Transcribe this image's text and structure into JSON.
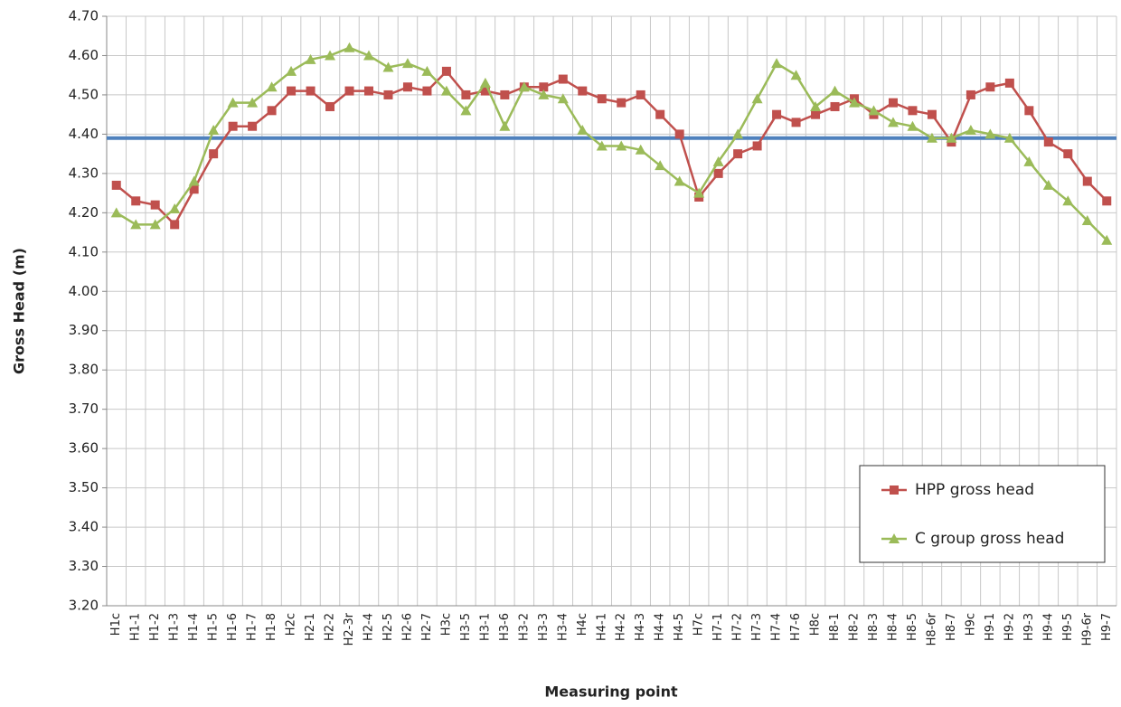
{
  "chart_data": {
    "type": "line",
    "y_label": "Gross Head (m)",
    "x_label": "Measuring point",
    "categories": [
      "H1c",
      "H1-1",
      "H1-2",
      "H1-3",
      "H1-4",
      "H1-5",
      "H1-6",
      "H1-7",
      "H1-8",
      "H2c",
      "H2-1",
      "H2-2",
      "H2-3r",
      "H2-4",
      "H2-5",
      "H2-6",
      "H2-7",
      "H3c",
      "H3-5",
      "H3-1",
      "H3-6",
      "H3-2",
      "H3-3",
      "H3-4",
      "H4c",
      "H4-1",
      "H4-2",
      "H4-3",
      "H4-4",
      "H4-5",
      "H7c",
      "H7-1",
      "H7-2",
      "H7-3",
      "H7-4",
      "H7-6",
      "H8c",
      "H8-1",
      "H8-2",
      "H8-3",
      "H8-4",
      "H8-5",
      "H8-6r",
      "H8-7",
      "H9c",
      "H9-1",
      "H9-2",
      "H9-3",
      "H9-4",
      "H9-5",
      "H9-6r",
      "H9-7"
    ],
    "series": [
      {
        "name": "HPP gross head",
        "color": "#c0504d",
        "marker": "square",
        "values": [
          4.27,
          4.23,
          4.22,
          4.17,
          4.26,
          4.35,
          4.42,
          4.42,
          4.46,
          4.51,
          4.51,
          4.47,
          4.51,
          4.51,
          4.5,
          4.52,
          4.51,
          4.56,
          4.5,
          4.51,
          4.5,
          4.52,
          4.52,
          4.54,
          4.51,
          4.49,
          4.48,
          4.5,
          4.45,
          4.4,
          4.24,
          4.3,
          4.35,
          4.37,
          4.45,
          4.43,
          4.45,
          4.47,
          4.49,
          4.45,
          4.48,
          4.46,
          4.45,
          4.38,
          4.5,
          4.52,
          4.53,
          4.46,
          4.38,
          4.35,
          4.28,
          4.23
        ]
      },
      {
        "name": "C group gross head",
        "color": "#9bbb59",
        "marker": "triangle",
        "values": [
          4.2,
          4.17,
          4.17,
          4.21,
          4.28,
          4.41,
          4.48,
          4.48,
          4.52,
          4.56,
          4.59,
          4.6,
          4.62,
          4.6,
          4.57,
          4.58,
          4.56,
          4.51,
          4.46,
          4.53,
          4.42,
          4.52,
          4.5,
          4.49,
          4.41,
          4.37,
          4.37,
          4.36,
          4.32,
          4.28,
          4.25,
          4.33,
          4.4,
          4.49,
          4.58,
          4.55,
          4.47,
          4.51,
          4.48,
          4.46,
          4.43,
          4.42,
          4.39,
          4.39,
          4.41,
          4.4,
          4.39,
          4.33,
          4.27,
          4.23,
          4.18,
          4.13
        ]
      }
    ],
    "reference_line": {
      "value": 4.39,
      "color": "#4f81bd"
    },
    "ylim": [
      3.2,
      4.7
    ],
    "yticks": [
      {
        "value": 3.2,
        "label": "3.20"
      },
      {
        "value": 3.3,
        "label": "3.30"
      },
      {
        "value": 3.4,
        "label": "3.40"
      },
      {
        "value": 3.5,
        "label": "3.50"
      },
      {
        "value": 3.6,
        "label": "3.60"
      },
      {
        "value": 3.7,
        "label": "3.70"
      },
      {
        "value": 3.8,
        "label": "3.80"
      },
      {
        "value": 3.9,
        "label": "3.90"
      },
      {
        "value": 4.0,
        "label": "4.00"
      },
      {
        "value": 4.1,
        "label": "4.10"
      },
      {
        "value": 4.2,
        "label": "4.20"
      },
      {
        "value": 4.3,
        "label": "4.30"
      },
      {
        "value": 4.4,
        "label": "4.40"
      },
      {
        "value": 4.5,
        "label": "4.50"
      },
      {
        "value": 4.6,
        "label": "4.60"
      },
      {
        "value": 4.7,
        "label": "4.70"
      }
    ],
    "grid": true,
    "legend_position": "lower right"
  }
}
